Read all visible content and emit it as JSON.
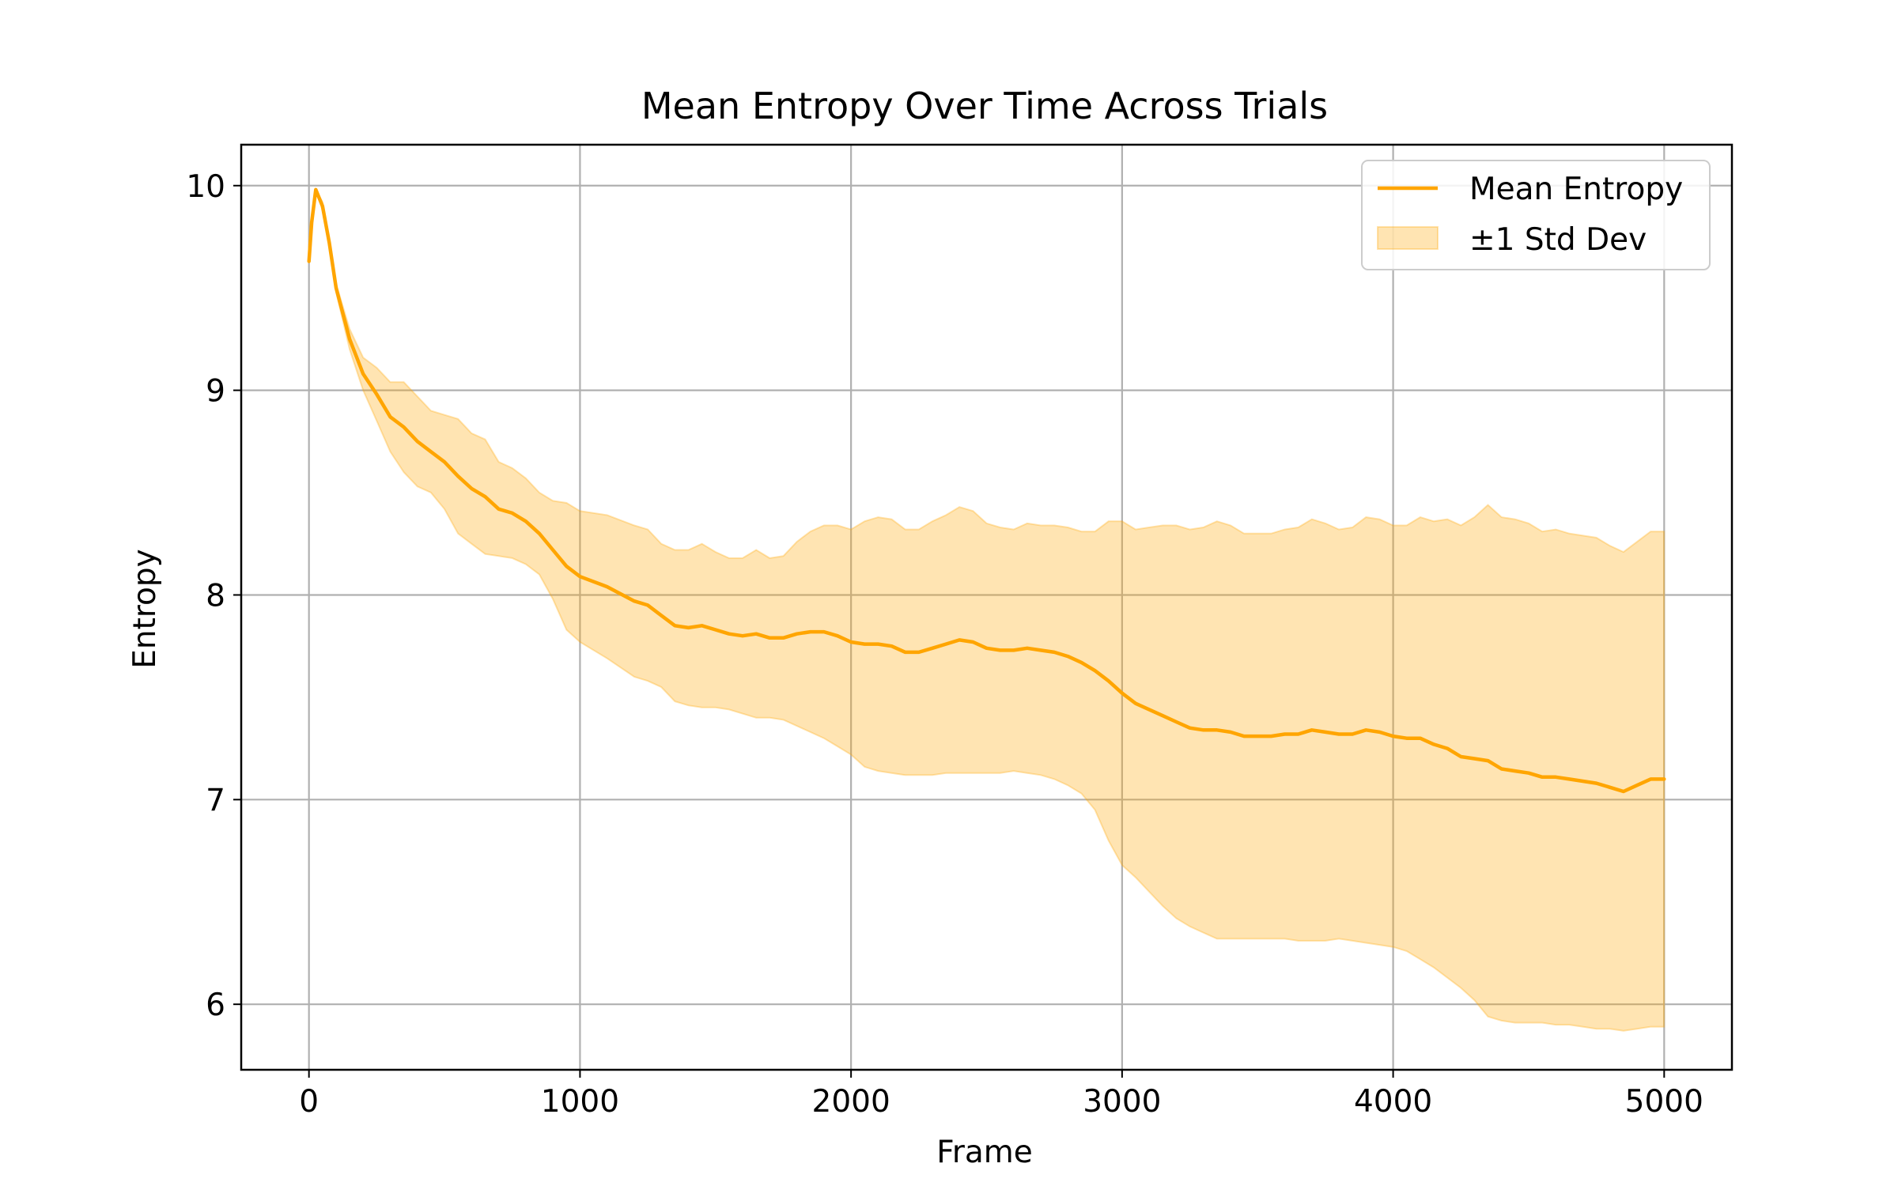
{
  "chart_data": {
    "type": "line",
    "title": "Mean Entropy Over Time Across Trials",
    "xlabel": "Frame",
    "ylabel": "Entropy",
    "xlim": [
      -250,
      5250
    ],
    "ylim": [
      5.68,
      10.2
    ],
    "xticks": [
      0,
      1000,
      2000,
      3000,
      4000,
      5000
    ],
    "yticks": [
      6,
      7,
      8,
      9,
      10
    ],
    "grid": true,
    "legend_position": "top-right",
    "colors": {
      "line": "#FFA500",
      "band": "#FFA500",
      "grid": "#b0b0b0"
    },
    "series": [
      {
        "name": "Mean Entropy",
        "kind": "line",
        "x": [
          0,
          10,
          25,
          50,
          75,
          100,
          150,
          200,
          250,
          300,
          350,
          400,
          450,
          500,
          550,
          600,
          650,
          700,
          750,
          800,
          850,
          900,
          950,
          1000,
          1100,
          1200,
          1250,
          1300,
          1350,
          1400,
          1450,
          1500,
          1550,
          1600,
          1650,
          1700,
          1750,
          1800,
          1850,
          1900,
          1950,
          2000,
          2050,
          2100,
          2150,
          2200,
          2250,
          2300,
          2350,
          2400,
          2450,
          2500,
          2550,
          2600,
          2650,
          2700,
          2750,
          2800,
          2850,
          2900,
          2950,
          3000,
          3050,
          3100,
          3150,
          3200,
          3250,
          3300,
          3350,
          3400,
          3450,
          3500,
          3550,
          3600,
          3650,
          3700,
          3750,
          3800,
          3850,
          3900,
          3950,
          4000,
          4050,
          4100,
          4150,
          4200,
          4250,
          4300,
          4350,
          4400,
          4450,
          4500,
          4550,
          4600,
          4650,
          4700,
          4750,
          4800,
          4850,
          4900,
          4950,
          5000
        ],
        "y": [
          9.63,
          9.82,
          9.98,
          9.9,
          9.72,
          9.5,
          9.25,
          9.08,
          8.98,
          8.87,
          8.82,
          8.75,
          8.7,
          8.65,
          8.58,
          8.52,
          8.48,
          8.42,
          8.4,
          8.36,
          8.3,
          8.22,
          8.14,
          8.09,
          8.04,
          7.97,
          7.95,
          7.9,
          7.85,
          7.84,
          7.85,
          7.83,
          7.81,
          7.8,
          7.81,
          7.79,
          7.79,
          7.81,
          7.82,
          7.82,
          7.8,
          7.77,
          7.76,
          7.76,
          7.75,
          7.72,
          7.72,
          7.74,
          7.76,
          7.78,
          7.77,
          7.74,
          7.73,
          7.73,
          7.74,
          7.73,
          7.72,
          7.7,
          7.67,
          7.63,
          7.58,
          7.52,
          7.47,
          7.44,
          7.41,
          7.38,
          7.35,
          7.34,
          7.34,
          7.33,
          7.31,
          7.31,
          7.31,
          7.32,
          7.32,
          7.34,
          7.33,
          7.32,
          7.32,
          7.34,
          7.33,
          7.31,
          7.3,
          7.3,
          7.27,
          7.25,
          7.21,
          7.2,
          7.19,
          7.15,
          7.14,
          7.13,
          7.11,
          7.11,
          7.1,
          7.09,
          7.08,
          7.06,
          7.04,
          7.07,
          7.1,
          7.1
        ]
      },
      {
        "name": "±1 Std Dev",
        "kind": "band",
        "x": [
          0,
          10,
          25,
          50,
          75,
          100,
          150,
          200,
          250,
          300,
          350,
          400,
          450,
          500,
          550,
          600,
          650,
          700,
          750,
          800,
          850,
          900,
          950,
          1000,
          1100,
          1200,
          1250,
          1300,
          1350,
          1400,
          1450,
          1500,
          1550,
          1600,
          1650,
          1700,
          1750,
          1800,
          1850,
          1900,
          1950,
          2000,
          2050,
          2100,
          2150,
          2200,
          2250,
          2300,
          2350,
          2400,
          2450,
          2500,
          2550,
          2600,
          2650,
          2700,
          2750,
          2800,
          2850,
          2900,
          2950,
          3000,
          3050,
          3100,
          3150,
          3200,
          3250,
          3300,
          3350,
          3400,
          3450,
          3500,
          3550,
          3600,
          3650,
          3700,
          3750,
          3800,
          3850,
          3900,
          3950,
          4000,
          4050,
          4100,
          4150,
          4200,
          4250,
          4300,
          4350,
          4400,
          4450,
          4500,
          4550,
          4600,
          4650,
          4700,
          4750,
          4800,
          4850,
          4900,
          4950,
          5000
        ],
        "lower": [
          9.63,
          9.82,
          9.98,
          9.88,
          9.7,
          9.48,
          9.2,
          9.0,
          8.85,
          8.7,
          8.6,
          8.53,
          8.5,
          8.42,
          8.3,
          8.25,
          8.2,
          8.19,
          8.18,
          8.15,
          8.1,
          7.98,
          7.83,
          7.77,
          7.69,
          7.6,
          7.58,
          7.55,
          7.48,
          7.46,
          7.45,
          7.45,
          7.44,
          7.42,
          7.4,
          7.4,
          7.39,
          7.36,
          7.33,
          7.3,
          7.26,
          7.22,
          7.16,
          7.14,
          7.13,
          7.12,
          7.12,
          7.12,
          7.13,
          7.13,
          7.13,
          7.13,
          7.13,
          7.14,
          7.13,
          7.12,
          7.1,
          7.07,
          7.03,
          6.95,
          6.8,
          6.68,
          6.62,
          6.55,
          6.48,
          6.42,
          6.38,
          6.35,
          6.32,
          6.32,
          6.32,
          6.32,
          6.32,
          6.32,
          6.31,
          6.31,
          6.31,
          6.32,
          6.31,
          6.3,
          6.29,
          6.28,
          6.26,
          6.22,
          6.18,
          6.13,
          6.08,
          6.02,
          5.94,
          5.92,
          5.91,
          5.91,
          5.91,
          5.9,
          5.9,
          5.89,
          5.88,
          5.88,
          5.87,
          5.88,
          5.89,
          5.89
        ]
      }
    ]
  },
  "derive_upper_from_mean": true
}
